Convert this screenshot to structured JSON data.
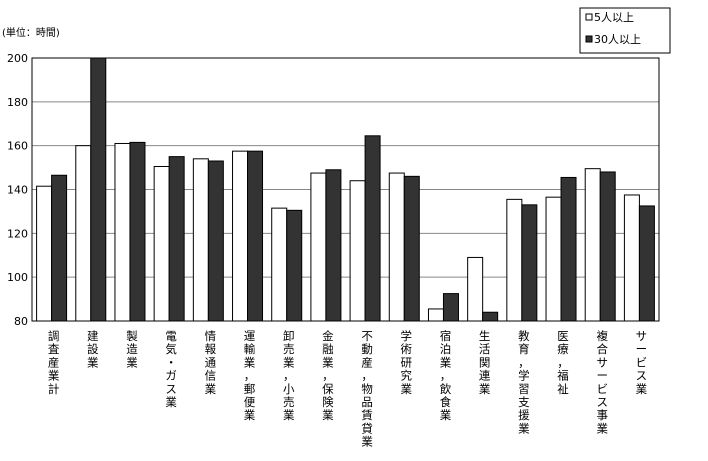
{
  "chart_data": {
    "type": "bar",
    "unit_label": "(単位：時間)",
    "ylim": [
      80,
      200
    ],
    "yticks": [
      80,
      100,
      120,
      140,
      160,
      180,
      200
    ],
    "grid": true,
    "legend_position": "top-right",
    "categories": [
      "調査産業計",
      "建設業",
      "製造業",
      "電気・ガス業",
      "情報通信業",
      "運輸業，郵便業",
      "卸売業，小売業",
      "金融業，保険業",
      "不動産，物品賃貸業",
      "学術研究業",
      "宿泊業，飲食業",
      "生活関連業",
      "教育，学習支援業",
      "医療，福祉",
      "複合サービス事業",
      "サービス業"
    ],
    "series": [
      {
        "name": "5人以上",
        "color": "#ffffff",
        "values": [
          141.5,
          160,
          161,
          150.5,
          154,
          157.5,
          131.5,
          147.5,
          144,
          147.5,
          85.5,
          109,
          135.5,
          136.5,
          149.5,
          137.5
        ]
      },
      {
        "name": "30人以上",
        "color": "#333333",
        "values": [
          146.5,
          200,
          161.5,
          155,
          153,
          157.5,
          130.5,
          149,
          164.5,
          146,
          92.5,
          84,
          133,
          145.5,
          148,
          132.5
        ]
      }
    ]
  }
}
